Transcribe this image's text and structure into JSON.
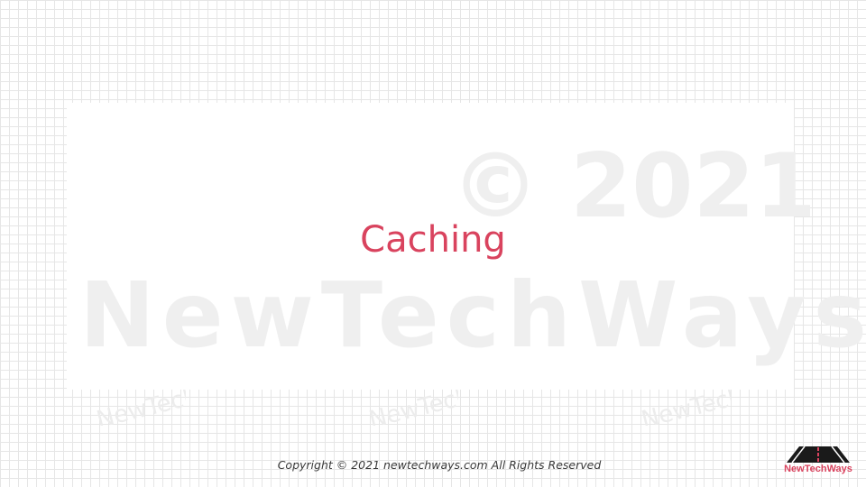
{
  "slide": {
    "title": "Caching"
  },
  "watermark": {
    "year": "© 2021",
    "brand": "NewTechWays",
    "small_marks": [
      "NewTech",
      "NewTech",
      "NewTech"
    ]
  },
  "footer": {
    "copyright": "Copyright © 2021 newtechways.com All Rights Reserved"
  },
  "logo": {
    "text": "NewTechWays",
    "icon": "road-icon"
  },
  "colors": {
    "accent": "#d9435e",
    "watermark": "#efefef",
    "grid": "#e6e6e6",
    "footer_text": "#3a3a3a"
  }
}
